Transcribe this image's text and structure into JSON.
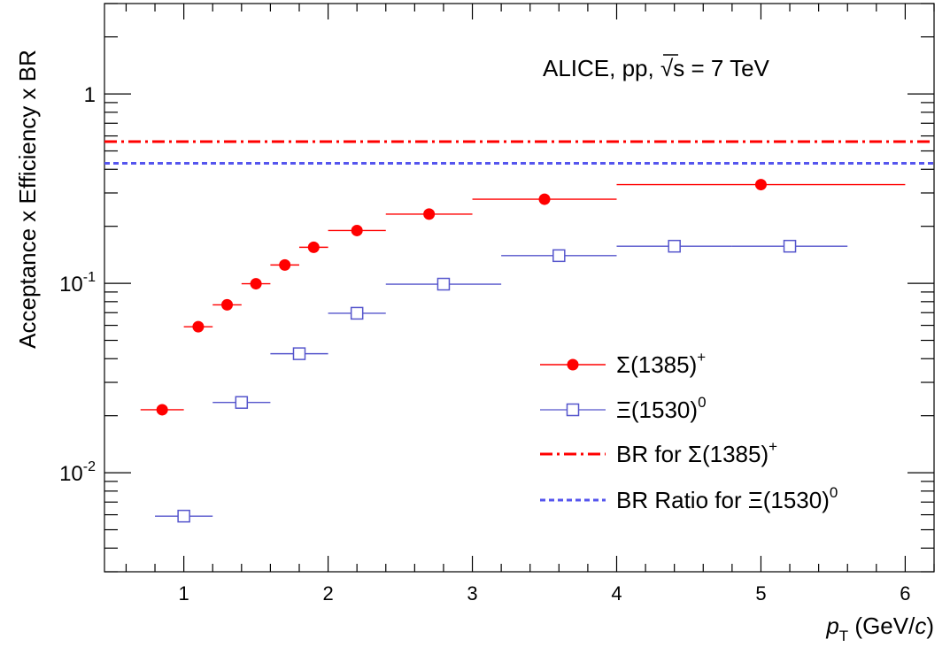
{
  "chart_data": {
    "type": "scatter",
    "log_y": true,
    "xlim": [
      0.45,
      6.2
    ],
    "ylim": [
      0.003,
      3
    ],
    "grid": false,
    "ylabel": "Acceptance x Efficiency x BR",
    "xlabel": {
      "var": "p",
      "sub": "T",
      "unit_pre": " (GeV/",
      "unit_var": "c",
      "unit_post": ")"
    },
    "annotation": {
      "pre": "ALICE, pp, ",
      "root": "√",
      "s": "s",
      "post": " = 7 TeV"
    },
    "x_ticks": [
      "1",
      "2",
      "3",
      "4",
      "5",
      "6"
    ],
    "y_ticks": [
      {
        "value": 1,
        "base": "1",
        "exp": ""
      },
      {
        "value": 0.1,
        "base": "10",
        "exp": "-1"
      },
      {
        "value": 0.01,
        "base": "10",
        "exp": "-2"
      }
    ],
    "legend_position": "bottom-right",
    "series": [
      {
        "name": "Σ(1385)",
        "sup": "+",
        "marker": "filled-circle",
        "color": "#ff0000",
        "points": [
          {
            "x": 0.85,
            "xlo": 0.7,
            "xhi": 1.0,
            "y": 0.0215
          },
          {
            "x": 1.1,
            "xlo": 1.0,
            "xhi": 1.2,
            "y": 0.059
          },
          {
            "x": 1.3,
            "xlo": 1.2,
            "xhi": 1.4,
            "y": 0.077
          },
          {
            "x": 1.5,
            "xlo": 1.4,
            "xhi": 1.6,
            "y": 0.0995
          },
          {
            "x": 1.7,
            "xlo": 1.6,
            "xhi": 1.8,
            "y": 0.125
          },
          {
            "x": 1.9,
            "xlo": 1.8,
            "xhi": 2.0,
            "y": 0.155
          },
          {
            "x": 2.2,
            "xlo": 2.0,
            "xhi": 2.4,
            "y": 0.19
          },
          {
            "x": 2.7,
            "xlo": 2.4,
            "xhi": 3.0,
            "y": 0.232
          },
          {
            "x": 3.5,
            "xlo": 3.0,
            "xhi": 4.0,
            "y": 0.278
          },
          {
            "x": 5.0,
            "xlo": 4.0,
            "xhi": 6.0,
            "y": 0.332
          }
        ]
      },
      {
        "name": "Ξ(1530)",
        "sup": "0",
        "marker": "open-square",
        "color": "#5555cc",
        "points": [
          {
            "x": 1.0,
            "xlo": 0.8,
            "xhi": 1.2,
            "y": 0.0059
          },
          {
            "x": 1.4,
            "xlo": 1.2,
            "xhi": 1.6,
            "y": 0.0235
          },
          {
            "x": 1.8,
            "xlo": 1.6,
            "xhi": 2.0,
            "y": 0.0425
          },
          {
            "x": 2.2,
            "xlo": 2.0,
            "xhi": 2.4,
            "y": 0.0695
          },
          {
            "x": 2.8,
            "xlo": 2.4,
            "xhi": 3.2,
            "y": 0.099
          },
          {
            "x": 3.6,
            "xlo": 3.2,
            "xhi": 4.0,
            "y": 0.14
          },
          {
            "x": 4.4,
            "xlo": 4.0,
            "xhi": 4.8,
            "y": 0.157
          },
          {
            "x": 5.2,
            "xlo": 4.8,
            "xhi": 5.6,
            "y": 0.157
          }
        ]
      }
    ],
    "reference_lines": [
      {
        "name": "BR for Σ(1385)",
        "sup": "+",
        "y": 0.56,
        "color": "#ff0000",
        "style": "dash-dot"
      },
      {
        "name": "BR Ratio for Ξ(1530)",
        "sup": "0",
        "y": 0.43,
        "color": "#5555ee",
        "style": "dashed"
      }
    ]
  }
}
